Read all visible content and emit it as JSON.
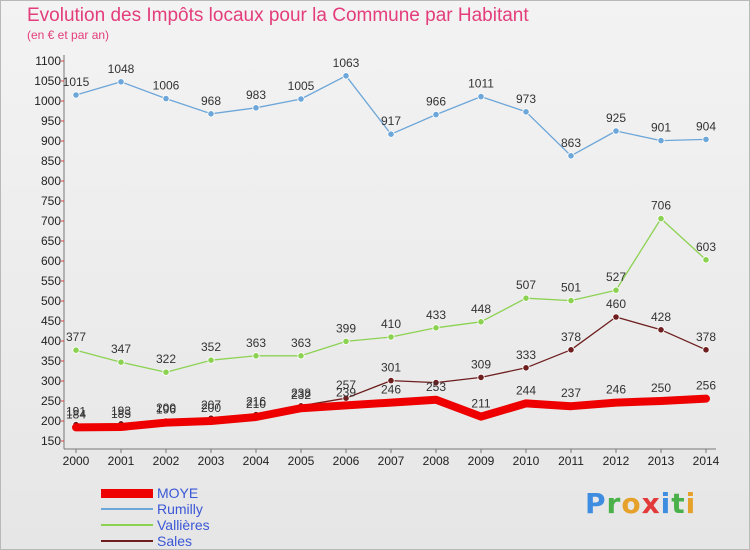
{
  "title": "Evolution des Impôts locaux pour la Commune par Habitant",
  "subtitle": "(en € et par an)",
  "brand": {
    "letters": [
      "P",
      "r",
      "o",
      "x",
      "i",
      "t",
      "i"
    ],
    "colors": [
      "#3f8de0",
      "#4ab04a",
      "#e5a12a",
      "#e23a3a",
      "#3f8de0",
      "#4ab04a",
      "#e5a12a"
    ]
  },
  "chart_data": {
    "type": "line",
    "title": "Evolution des Impôts locaux pour la Commune par Habitant",
    "subtitle": "(en € et par an)",
    "x": [
      2000,
      2001,
      2002,
      2003,
      2004,
      2005,
      2006,
      2007,
      2008,
      2009,
      2010,
      2011,
      2012,
      2013,
      2014
    ],
    "x_tick_labels": [
      "2000",
      "2001",
      "2002",
      "2003",
      "2004",
      "2005",
      "2006",
      "2007",
      "2008",
      "2009",
      "2010",
      "2011",
      "2012",
      "2013",
      "2014"
    ],
    "ylim": [
      150,
      1100
    ],
    "y_ticks": [
      150,
      200,
      250,
      300,
      350,
      400,
      450,
      500,
      550,
      600,
      650,
      700,
      750,
      800,
      850,
      900,
      950,
      1000,
      1050,
      1100
    ],
    "grid": false,
    "legend_position": "bottom-left",
    "series": [
      {
        "name": "MOYE",
        "color": "#ee0000",
        "width": 8,
        "values": [
          184,
          185,
          196,
          200,
          210,
          232,
          239,
          246,
          253,
          211,
          244,
          237,
          246,
          250,
          256
        ],
        "labels_shown": [
          true,
          true,
          true,
          true,
          true,
          true,
          true,
          true,
          true,
          true,
          true,
          true,
          true,
          true,
          true
        ]
      },
      {
        "name": "Rumilly",
        "color": "#6da6d8",
        "width": 1.3,
        "values": [
          1015,
          1048,
          1006,
          968,
          983,
          1005,
          1063,
          917,
          966,
          1011,
          973,
          863,
          925,
          901,
          904
        ],
        "labels_shown": [
          true,
          true,
          true,
          true,
          true,
          true,
          true,
          true,
          true,
          true,
          true,
          true,
          true,
          true,
          true
        ]
      },
      {
        "name": "Vallières",
        "color": "#8cd252",
        "width": 1.3,
        "values": [
          377,
          347,
          322,
          352,
          363,
          363,
          399,
          410,
          433,
          448,
          507,
          501,
          527,
          706,
          603
        ],
        "labels_shown": [
          true,
          true,
          true,
          true,
          true,
          true,
          true,
          true,
          true,
          true,
          true,
          true,
          true,
          true,
          true
        ]
      },
      {
        "name": "Sales",
        "color": "#6e1e1e",
        "width": 1.3,
        "values": [
          191,
          193,
          200,
          207,
          216,
          238,
          257,
          301,
          296,
          309,
          333,
          378,
          460,
          428,
          378
        ],
        "labels_shown": [
          true,
          true,
          true,
          true,
          true,
          true,
          true,
          true,
          false,
          true,
          true,
          true,
          true,
          true,
          true
        ]
      }
    ]
  }
}
